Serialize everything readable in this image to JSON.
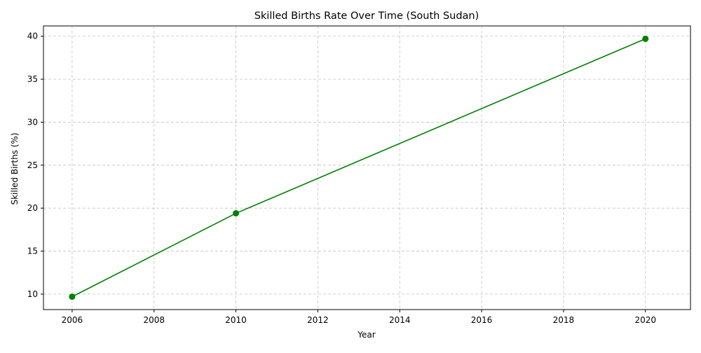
{
  "chart_data": {
    "type": "line",
    "title": "Skilled Births Rate Over Time (South Sudan)",
    "xlabel": "Year",
    "ylabel": "Skilled Births (%)",
    "xlim": [
      2005.3,
      2021.1
    ],
    "ylim": [
      8.2,
      41.2
    ],
    "xticks": [
      2006,
      2008,
      2010,
      2012,
      2014,
      2016,
      2018,
      2020
    ],
    "yticks": [
      10,
      15,
      20,
      25,
      30,
      35,
      40
    ],
    "grid": true,
    "series": [
      {
        "color": "#008000",
        "marker": "circle",
        "x": [
          2006,
          2010,
          2020
        ],
        "y": [
          9.7,
          19.4,
          39.7
        ]
      }
    ]
  }
}
